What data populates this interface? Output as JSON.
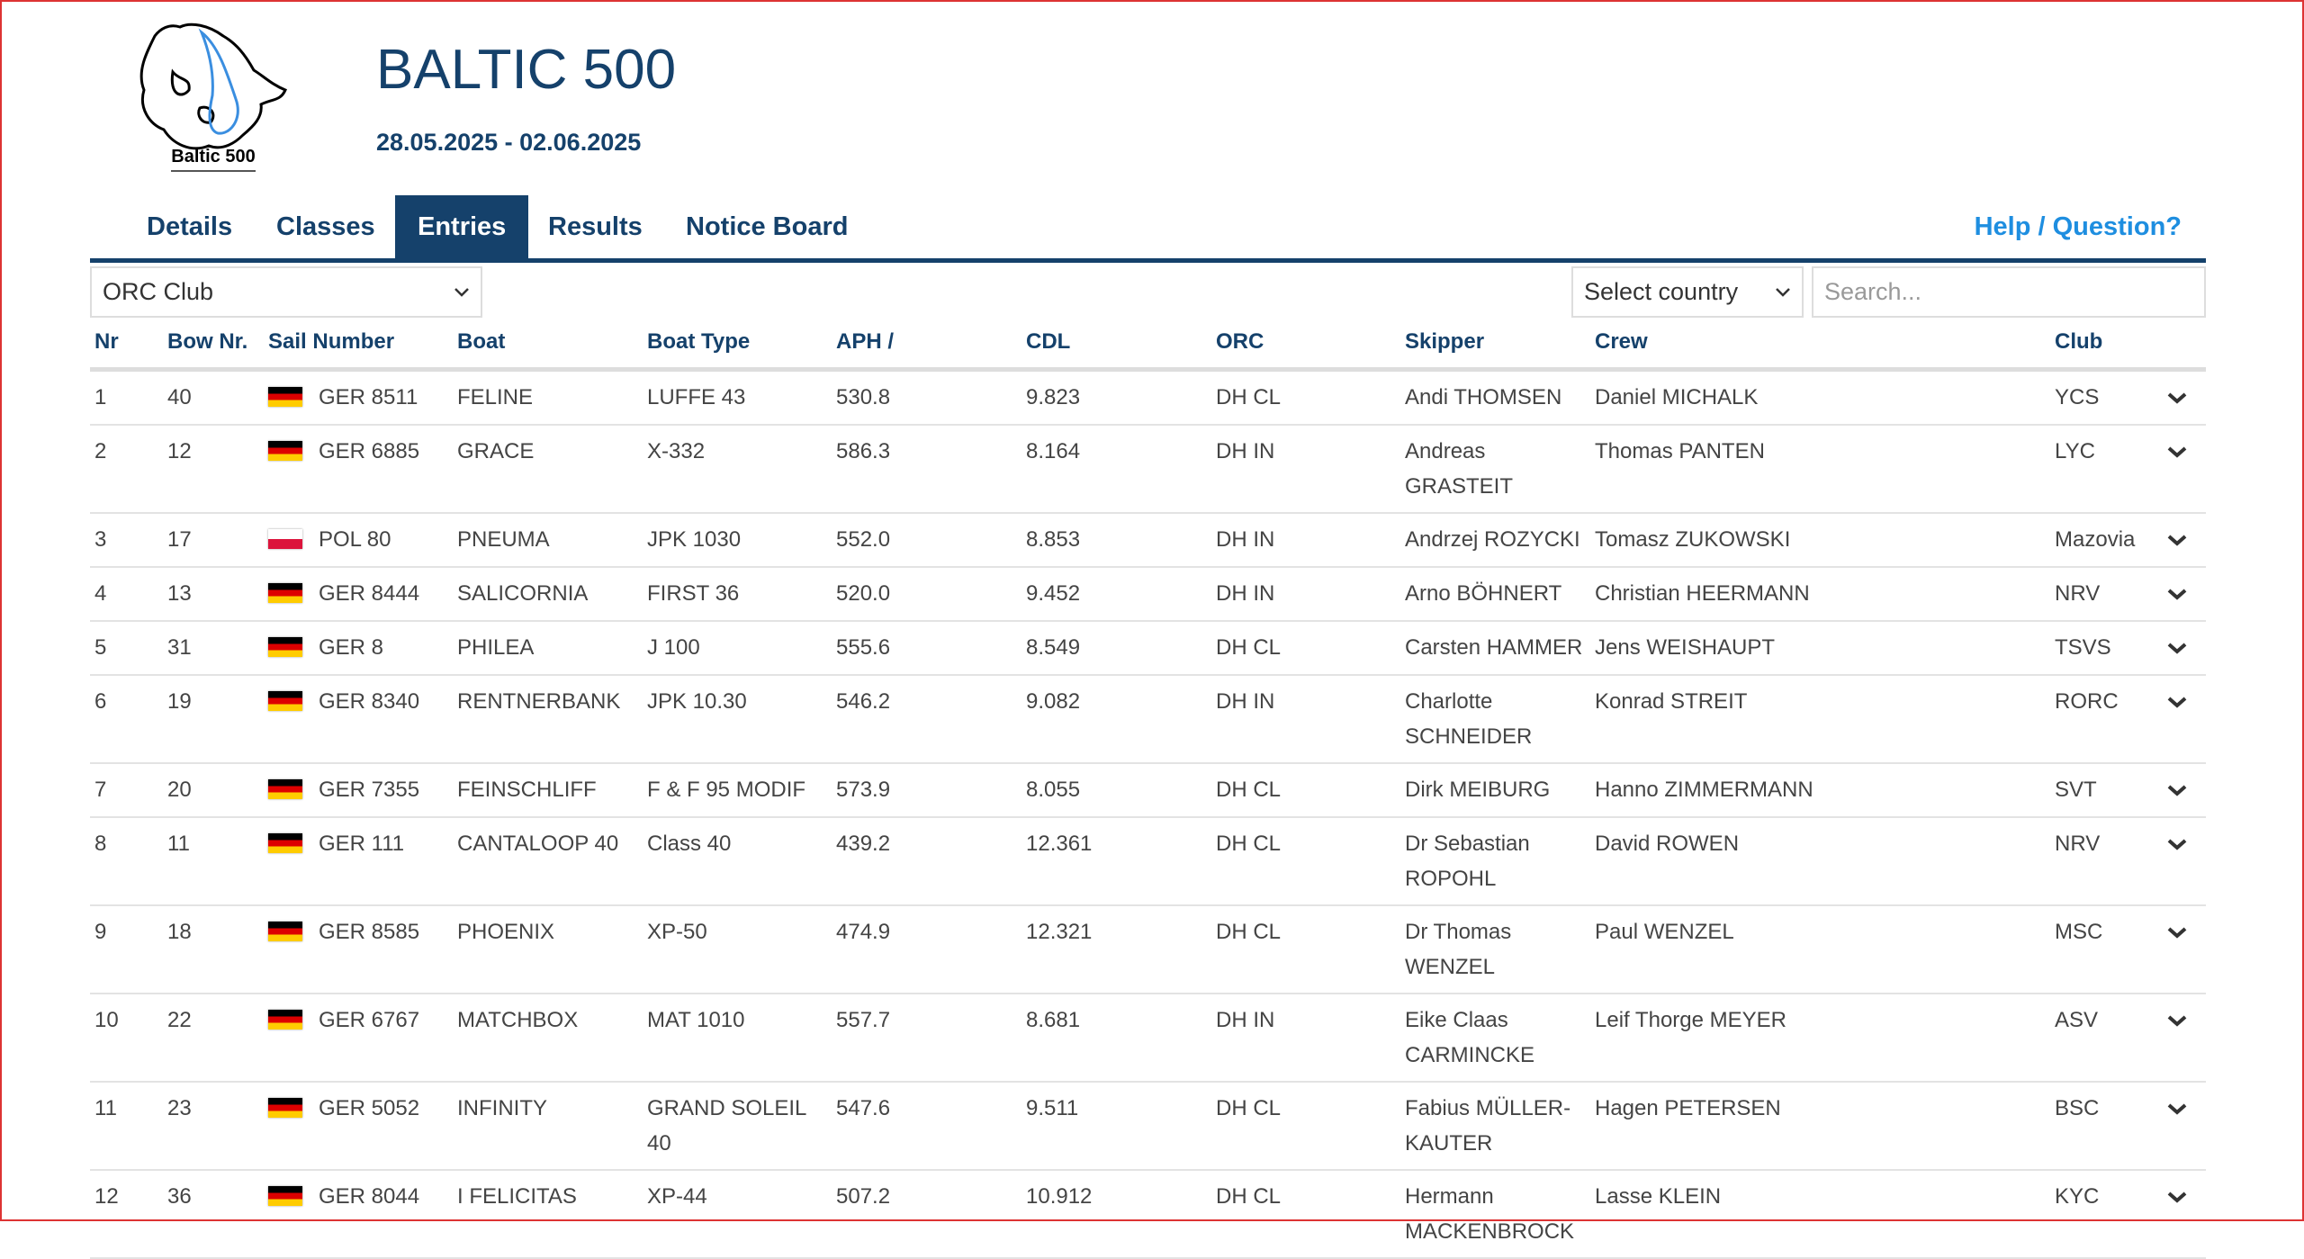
{
  "header": {
    "logo_text": "Baltic 500",
    "title": "BALTIC 500",
    "dates": "28.05.2025 - 02.06.2025"
  },
  "nav": {
    "tabs": [
      "Details",
      "Classes",
      "Entries",
      "Results",
      "Notice Board"
    ],
    "help": "Help / Question?"
  },
  "filters": {
    "class_select": "ORC Club",
    "country_select": "Select country",
    "search_placeholder": "Search..."
  },
  "table": {
    "columns": [
      "Nr",
      "Bow Nr.",
      "Sail Number",
      "Boat",
      "Boat Type",
      "APH /",
      "CDL",
      "ORC",
      "Skipper",
      "Crew",
      "Club"
    ],
    "rows": [
      [
        "1",
        "40",
        "GER 8511",
        "FELINE",
        "LUFFE 43",
        "530.8",
        "9.823",
        "DH CL",
        "Andi THOMSEN",
        "Daniel MICHALK",
        "YCS"
      ],
      [
        "2",
        "12",
        "GER 6885",
        "GRACE",
        "X-332",
        "586.3",
        "8.164",
        "DH IN",
        "Andreas GRASTEIT",
        "Thomas PANTEN",
        "LYC"
      ],
      [
        "3",
        "17",
        "POL 80",
        "PNEUMA",
        "JPK 1030",
        "552.0",
        "8.853",
        "DH IN",
        "Andrzej ROZYCKI",
        "Tomasz ZUKOWSKI",
        "Mazovia"
      ],
      [
        "4",
        "13",
        "GER 8444",
        "SALICORNIA",
        "FIRST 36",
        "520.0",
        "9.452",
        "DH IN",
        "Arno BÖHNERT",
        "Christian HEERMANN",
        "NRV"
      ],
      [
        "5",
        "31",
        "GER 8",
        "PHILEA",
        "J 100",
        "555.6",
        "8.549",
        "DH CL",
        "Carsten HAMMER",
        "Jens WEISHAUPT",
        "TSVS"
      ],
      [
        "6",
        "19",
        "GER 8340",
        "RENTNERBANK",
        "JPK 10.30",
        "546.2",
        "9.082",
        "DH IN",
        "Charlotte SCHNEIDER",
        "Konrad STREIT",
        "RORC"
      ],
      [
        "7",
        "20",
        "GER 7355",
        "FEINSCHLIFF",
        "F & F 95 MODIF",
        "573.9",
        "8.055",
        "DH CL",
        "Dirk MEIBURG",
        "Hanno ZIMMERMANN",
        "SVT"
      ],
      [
        "8",
        "11",
        "GER 111",
        "CANTALOOP 40",
        "Class 40",
        "439.2",
        "12.361",
        "DH CL",
        "Dr Sebastian ROPOHL",
        "David ROWEN",
        "NRV"
      ],
      [
        "9",
        "18",
        "GER 8585",
        "PHOENIX",
        "XP-50",
        "474.9",
        "12.321",
        "DH CL",
        "Dr Thomas WENZEL",
        "Paul WENZEL",
        "MSC"
      ],
      [
        "10",
        "22",
        "GER 6767",
        "MATCHBOX",
        "MAT 1010",
        "557.7",
        "8.681",
        "DH IN",
        "Eike Claas CARMINCKE",
        "Leif Thorge MEYER",
        "ASV"
      ],
      [
        "11",
        "23",
        "GER 5052",
        "INFINITY",
        "GRAND SOLEIL 40",
        "547.6",
        "9.511",
        "DH CL",
        "Fabius MÜLLER-KAUTER",
        "Hagen PETERSEN",
        "BSC"
      ],
      [
        "12",
        "36",
        "GER 8044",
        "I FELICITAS",
        "XP-44",
        "507.2",
        "10.912",
        "DH CL",
        "Hermann MACKENBROCK",
        "Lasse KLEIN",
        "KYC"
      ]
    ]
  }
}
